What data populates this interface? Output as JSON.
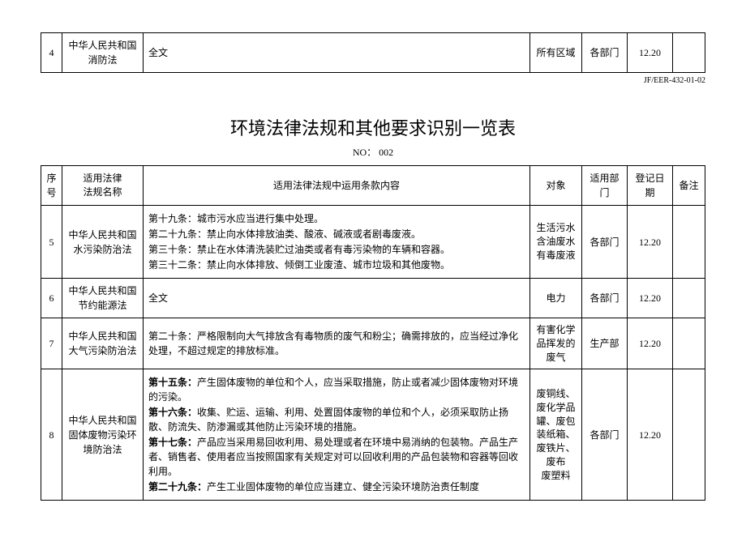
{
  "doc_code": "JF/EER-432-01-02",
  "top_row": {
    "index": "4",
    "law": "中华人民共和国消防法",
    "content": "全文",
    "target": "所有区域",
    "dept": "各部门",
    "date": "12.20"
  },
  "title": "环境法律法规和其他要求识别一览表",
  "subtitle": "NO：  002",
  "headers": {
    "index": "序号",
    "law": "适用法律\n法规名称",
    "content": "适用法律法规中运用条款内容",
    "target": "对象",
    "dept": "适用部门",
    "date": "登记日期",
    "note": "备注"
  },
  "rows": [
    {
      "index": "5",
      "law": "中华人民共和国水污染防治法",
      "content_lines": [
        {
          "bold": false,
          "text": "第十九条：城市污水应当进行集中处理。"
        },
        {
          "bold": false,
          "text": "第二十九条：禁止向水体排放油类、酸液、碱液或者剧毒废液。"
        },
        {
          "bold": false,
          "text": "第三十条：禁止在水体清洗装贮过油类或者有毒污染物的车辆和容器。"
        },
        {
          "bold": false,
          "text": "第三十二条：禁止向水体排放、倾倒工业废渣、城市垃圾和其他废物。"
        }
      ],
      "target": "生活污水\n含油废水\n有毒废液",
      "dept": "各部门",
      "date": "12.20"
    },
    {
      "index": "6",
      "law": "中华人民共和国节约能源法",
      "content_lines": [
        {
          "bold": false,
          "text": "全文"
        }
      ],
      "target": "电力",
      "dept": "各部门",
      "date": "12.20"
    },
    {
      "index": "7",
      "law": "中华人民共和国大气污染防治法",
      "content_lines": [
        {
          "bold": false,
          "text": "第二十条：严格限制向大气排放含有毒物质的废气和粉尘；确需排放的，应当经过净化处理，不超过规定的排放标准。"
        }
      ],
      "target": "有害化学品挥发的废气",
      "dept": "生产部",
      "date": "12.20"
    },
    {
      "index": "8",
      "law": "中华人民共和国固体废物污染环境防治法",
      "content_lines": [
        {
          "bold": true,
          "text": "第十五条：",
          "tail": "产生固体废物的单位和个人，应当采取措施，防止或者减少固体废物对环境的污染。"
        },
        {
          "bold": true,
          "text": "第十六条：",
          "tail": "收集、贮运、运输、利用、处置固体废物的单位和个人，必须采取防止扬散、防流失、防渗漏或其他防止污染环境的措施。"
        },
        {
          "bold": true,
          "text": "第十七条：",
          "tail": "产品应当采用易回收利用、易处理或者在环境中易消纳的包装物。产品生产者、销售者、使用者应当按照国家有关规定对可以回收利用的产品包装物和容器等回收利用。"
        },
        {
          "bold": true,
          "text": "第二十九条：",
          "tail": "产生工业固体废物的单位应当建立、健全污染环境防治责任制度"
        }
      ],
      "target": "废铜线、\n废化学品\n罐、废包\n装纸箱、\n废铁片、\n废布\n废塑料",
      "dept": "各部门",
      "date": "12.20"
    }
  ]
}
